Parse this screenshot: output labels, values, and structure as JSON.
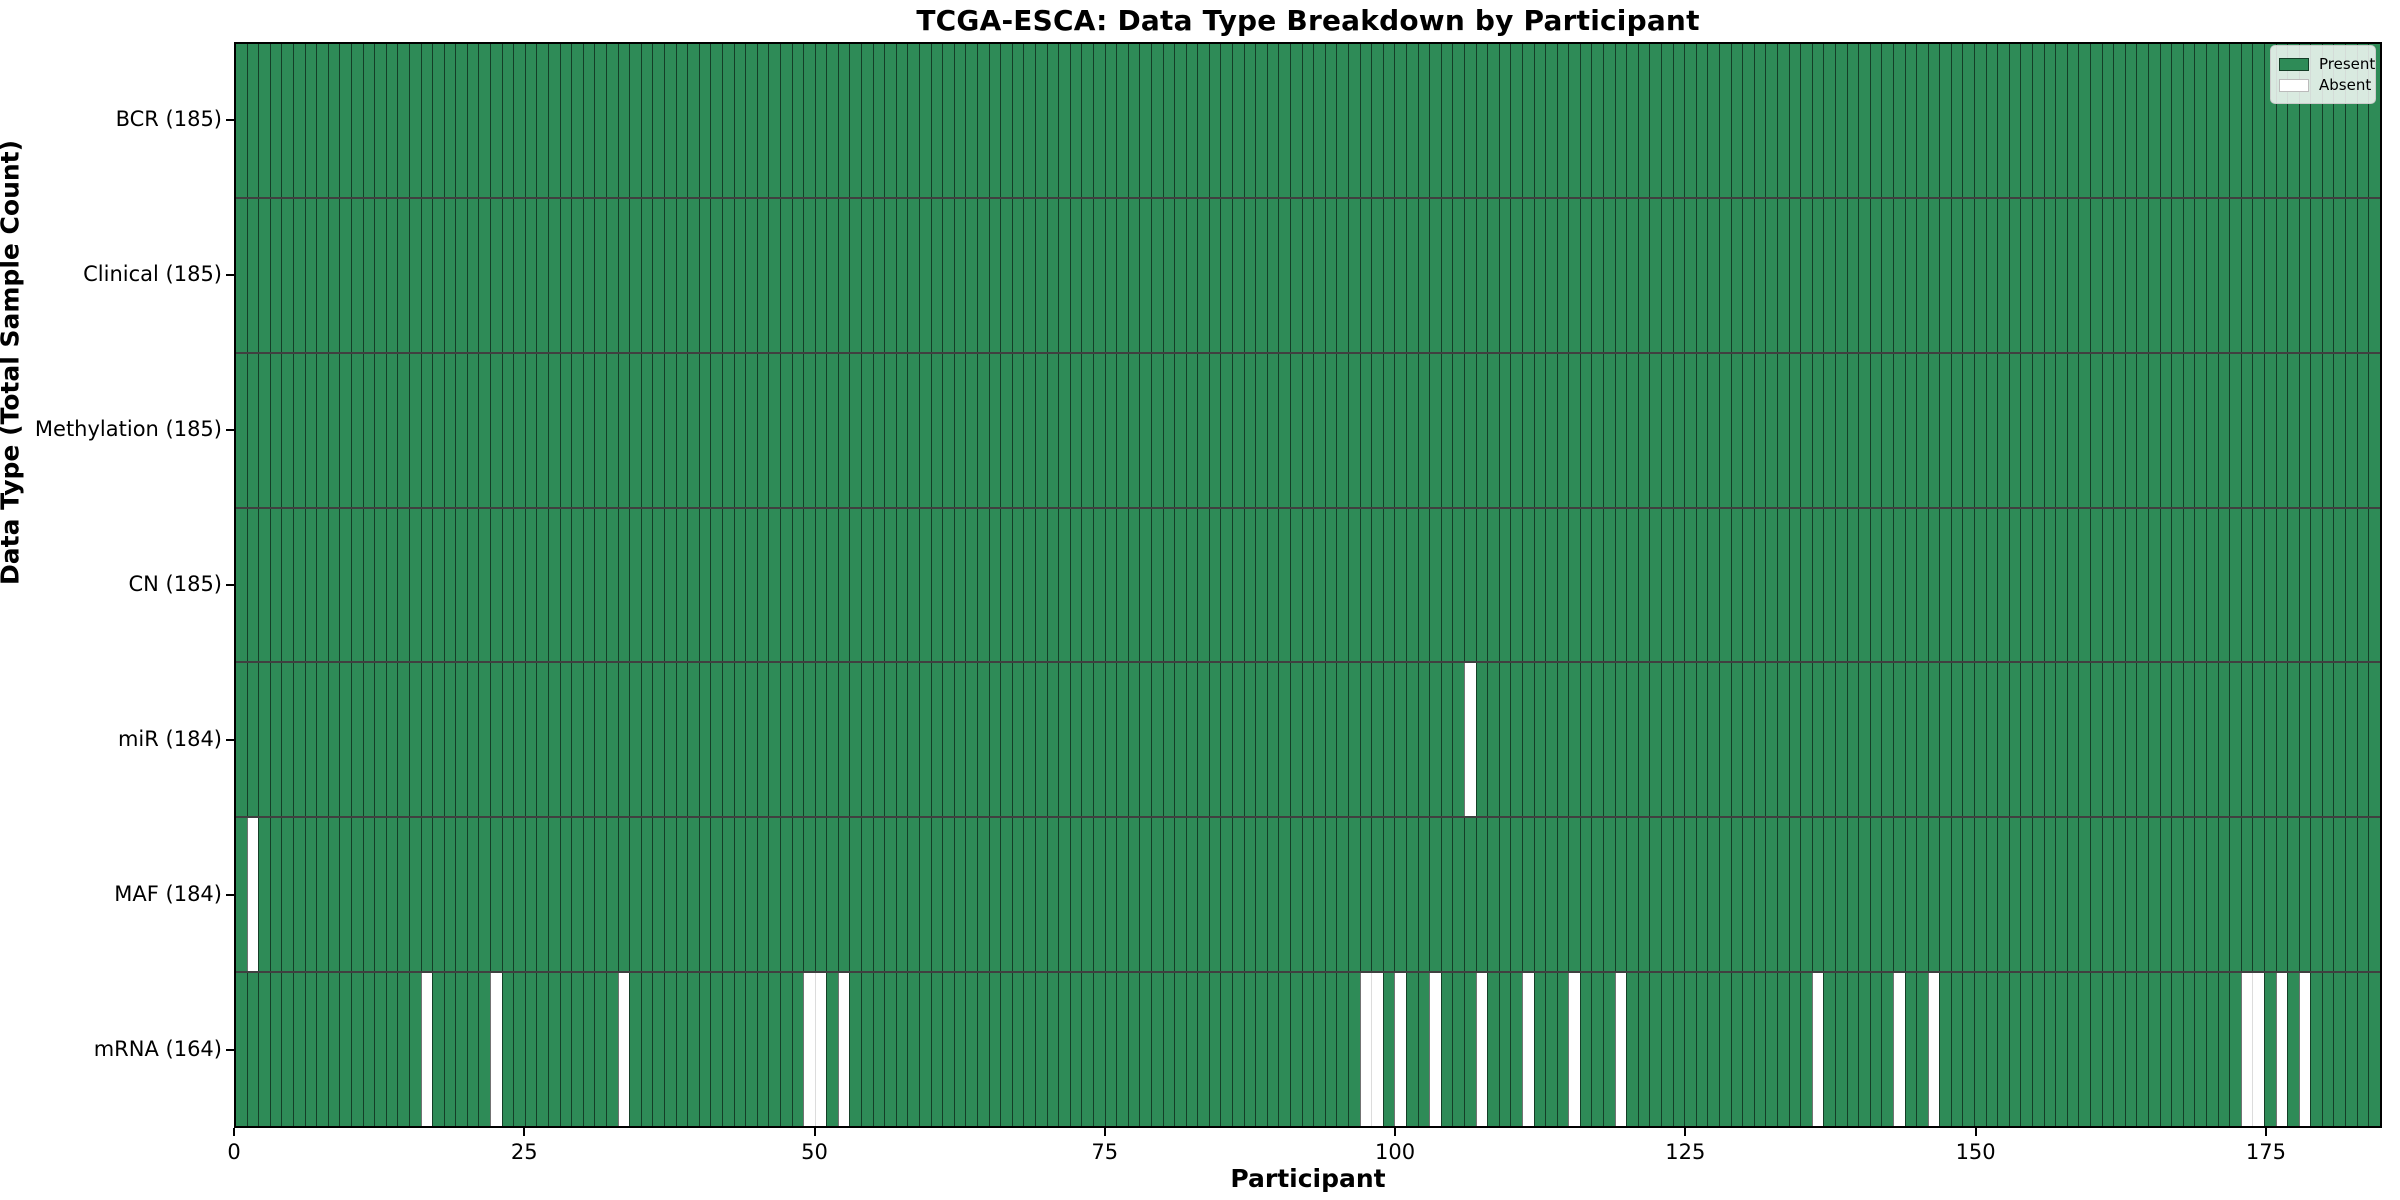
{
  "chart_data": {
    "type": "heatmap",
    "title": "TCGA-ESCA: Data Type Breakdown by Participant",
    "xlabel": "Participant",
    "ylabel": "Data Type (Total Sample Count)",
    "n_participants": 185,
    "x_ticks": [
      0,
      25,
      50,
      75,
      100,
      125,
      150,
      175
    ],
    "rows": [
      {
        "label": "BCR (185)",
        "data_type": "BCR",
        "present_count": 185,
        "absent_participants": []
      },
      {
        "label": "Clinical (185)",
        "data_type": "Clinical",
        "present_count": 185,
        "absent_participants": []
      },
      {
        "label": "Methylation (185)",
        "data_type": "Methylation",
        "present_count": 185,
        "absent_participants": []
      },
      {
        "label": "CN (185)",
        "data_type": "CN",
        "present_count": 185,
        "absent_participants": []
      },
      {
        "label": "miR (184)",
        "data_type": "miR",
        "present_count": 184,
        "absent_participants": [
          106
        ]
      },
      {
        "label": "MAF (184)",
        "data_type": "MAF",
        "present_count": 184,
        "absent_participants": [
          1
        ]
      },
      {
        "label": "mRNA (164)",
        "data_type": "mRNA",
        "present_count": 164,
        "absent_participants": [
          16,
          22,
          33,
          49,
          50,
          52,
          97,
          98,
          100,
          103,
          107,
          111,
          115,
          119,
          136,
          143,
          146,
          173,
          174,
          176,
          178
        ]
      }
    ],
    "legend": {
      "position": "upper right",
      "entries": [
        {
          "label": "Present",
          "color": "#2e8b57"
        },
        {
          "label": "Absent",
          "color": "#ffffff"
        }
      ]
    },
    "colors": {
      "present": "#2e8b57",
      "absent": "#ffffff",
      "bar_edge": "rgba(0,0,0,0.55)"
    },
    "layout": {
      "grid": "column-edges",
      "legend_frame": true
    }
  }
}
